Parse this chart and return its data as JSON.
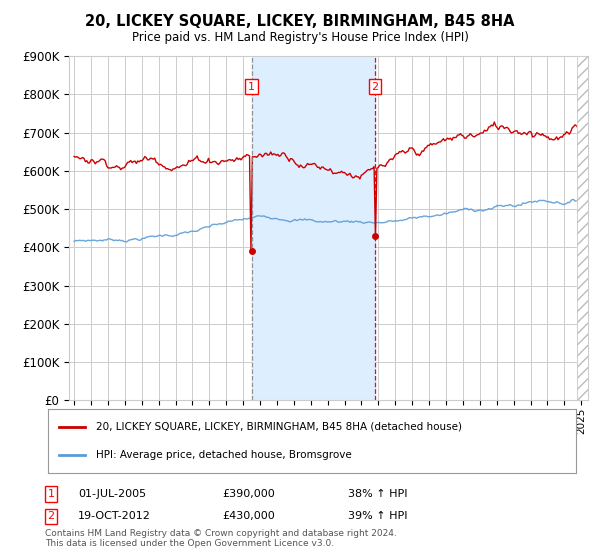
{
  "title": "20, LICKEY SQUARE, LICKEY, BIRMINGHAM, B45 8HA",
  "subtitle": "Price paid vs. HM Land Registry's House Price Index (HPI)",
  "ylabel_ticks": [
    "£0",
    "£100K",
    "£200K",
    "£300K",
    "£400K",
    "£500K",
    "£600K",
    "£700K",
    "£800K",
    "£900K"
  ],
  "ylim": [
    0,
    900000
  ],
  "xlim_start": 1994.7,
  "xlim_end": 2025.4,
  "sale1_x": 2005.5,
  "sale1_y": 390000,
  "sale2_x": 2012.8,
  "sale2_y": 430000,
  "legend_line1": "20, LICKEY SQUARE, LICKEY, BIRMINGHAM, B45 8HA (detached house)",
  "legend_line2": "HPI: Average price, detached house, Bromsgrove",
  "annotation1_label": "1",
  "annotation1_date": "01-JUL-2005",
  "annotation1_price": "£390,000",
  "annotation1_hpi": "38% ↑ HPI",
  "annotation2_label": "2",
  "annotation2_date": "19-OCT-2012",
  "annotation2_price": "£430,000",
  "annotation2_hpi": "39% ↑ HPI",
  "footnote": "Contains HM Land Registry data © Crown copyright and database right 2024.\nThis data is licensed under the Open Government Licence v3.0.",
  "line_red_color": "#cc0000",
  "line_blue_color": "#5b9bd5",
  "shade_color": "#ddeeff",
  "background_color": "#ffffff",
  "grid_color": "#cccccc",
  "hatch_color": "#bbbbbb"
}
